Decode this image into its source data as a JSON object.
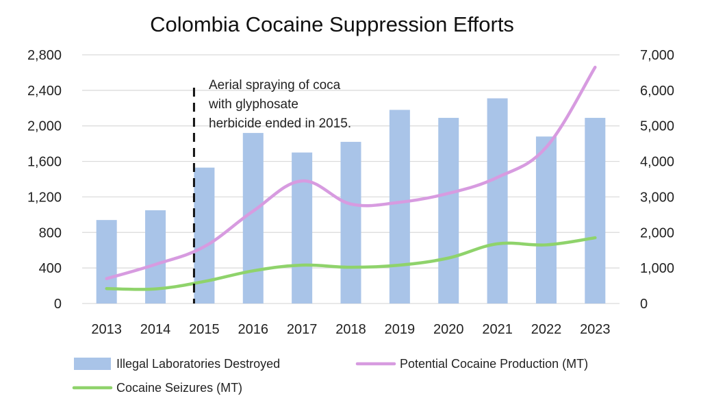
{
  "chart_data": {
    "type": "bar+line",
    "title": "Colombia Cocaine Suppression Efforts",
    "categories": [
      "2013",
      "2014",
      "2015",
      "2016",
      "2017",
      "2018",
      "2019",
      "2020",
      "2021",
      "2022",
      "2023"
    ],
    "left_axis": {
      "ylim": [
        0,
        2800
      ],
      "ticks": [
        0,
        400,
        800,
        1200,
        1600,
        2000,
        2400,
        2800
      ],
      "tick_labels": [
        "0",
        "400",
        "800",
        "1,200",
        "1,600",
        "2,000",
        "2,400",
        "2,800"
      ]
    },
    "right_axis": {
      "ylim": [
        0,
        7000
      ],
      "ticks": [
        0,
        1000,
        2000,
        3000,
        4000,
        5000,
        6000,
        7000
      ],
      "tick_labels": [
        "0",
        "1,000",
        "2,000",
        "3,000",
        "4,000",
        "5,000",
        "6,000",
        "7,000"
      ]
    },
    "grid": "horizontal",
    "series": [
      {
        "name": "Illegal Laboratories Destroyed",
        "type": "bar",
        "axis": "left",
        "color": "#a9c4e8",
        "values": [
          940,
          1050,
          1530,
          1920,
          1700,
          1820,
          2180,
          2090,
          2310,
          1880,
          2090
        ]
      },
      {
        "name": "Potential Cocaine Production (MT)",
        "type": "line",
        "axis": "right",
        "color": "#d79be0",
        "values": [
          700,
          1100,
          1600,
          2600,
          3450,
          2800,
          2850,
          3100,
          3550,
          4400,
          6650
        ]
      },
      {
        "name": "Cocaine Seizures (MT)",
        "type": "line",
        "axis": "right",
        "color": "#8fd36b",
        "values": [
          420,
          410,
          620,
          920,
          1080,
          1020,
          1080,
          1280,
          1680,
          1650,
          1850
        ]
      }
    ],
    "annotation": {
      "category": "2015",
      "lines": [
        "Aerial spraying of coca",
        "with glyphosate",
        "herbicide ended in 2015."
      ]
    },
    "legend": "bottom"
  }
}
